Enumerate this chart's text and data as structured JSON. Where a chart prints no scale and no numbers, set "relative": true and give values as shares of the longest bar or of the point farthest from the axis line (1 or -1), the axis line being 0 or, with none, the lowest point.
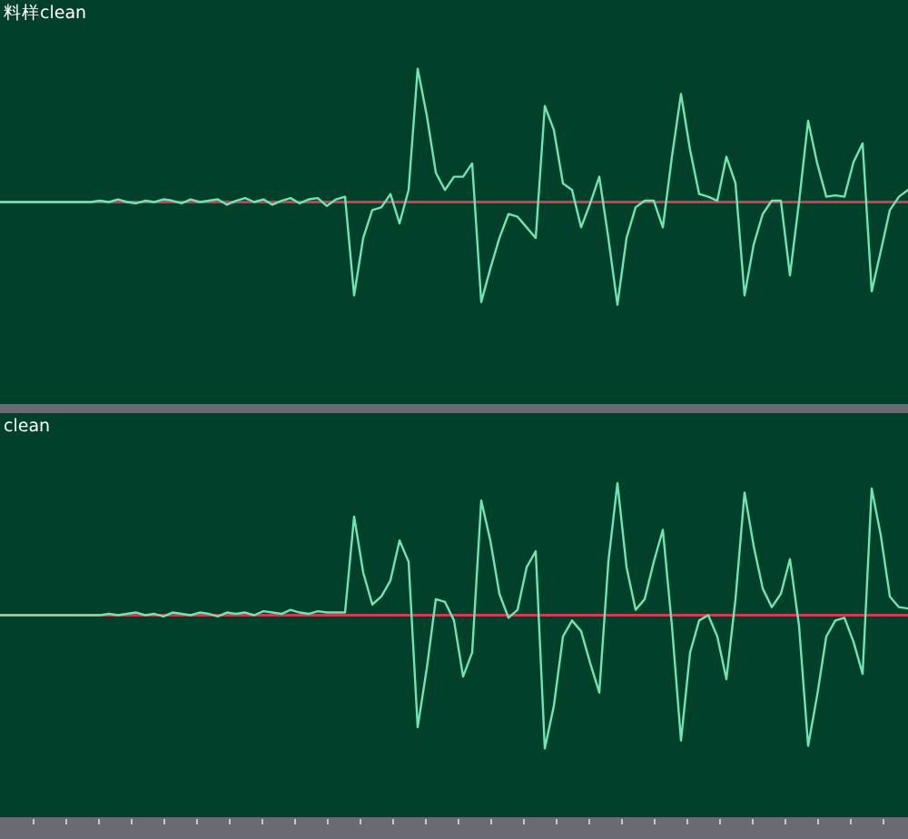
{
  "chart_data": [
    {
      "type": "line",
      "title": "料样clean",
      "relative": true,
      "categories": [
        null,
        null,
        null,
        null,
        null,
        null,
        null,
        null,
        null,
        null,
        null,
        null,
        null,
        null,
        null,
        null,
        null,
        null,
        null,
        null,
        null,
        null,
        null,
        null,
        null,
        null,
        null,
        null,
        null,
        null,
        null,
        null,
        null,
        null,
        null,
        null,
        null,
        null,
        null,
        null,
        null,
        null,
        null,
        null,
        null,
        null,
        null,
        null,
        null,
        null,
        null,
        null,
        null,
        null,
        null,
        null,
        null,
        null,
        null,
        null,
        null,
        null,
        null,
        null,
        null,
        null,
        null,
        null,
        null,
        null,
        null,
        null,
        null,
        null,
        null,
        null,
        null,
        null,
        null,
        null,
        null,
        null,
        null,
        null,
        null,
        null,
        null,
        null,
        null,
        null,
        null,
        null,
        null,
        null,
        null,
        null,
        null,
        null,
        null,
        null,
        null
      ],
      "series": [
        {
          "color": "#6ee6b4",
          "values": [
            0,
            0,
            0,
            0,
            0,
            0,
            0,
            0,
            0,
            0,
            0,
            0.01,
            0,
            0.02,
            0,
            -0.01,
            0.01,
            0,
            0.02,
            0.01,
            -0.01,
            0.02,
            0,
            0.01,
            0.02,
            -0.02,
            0.01,
            0.03,
            0,
            0.02,
            -0.02,
            0.01,
            0.03,
            -0.01,
            0.02,
            0.03,
            -0.03,
            0.02,
            0.04,
            -0.7,
            -0.27,
            -0.06,
            -0.04,
            0.06,
            -0.16,
            0.09,
            1.0,
            0.65,
            0.22,
            0.09,
            0.19,
            0.19,
            0.29,
            -0.75,
            -0.5,
            -0.27,
            -0.09,
            -0.11,
            -0.19,
            -0.27,
            0.72,
            0.54,
            0.14,
            0.09,
            -0.19,
            -0.01,
            0.19,
            -0.27,
            -0.77,
            -0.27,
            -0.04,
            0.01,
            0.01,
            -0.19,
            0.34,
            0.81,
            0.39,
            0.06,
            0.04,
            0.01,
            0.34,
            0.14,
            -0.7,
            -0.32,
            -0.09,
            0.01,
            0.01,
            -0.55,
            0,
            0.61,
            0.29,
            0.04,
            0.05,
            0.04,
            0.3,
            0.44,
            -0.67,
            -0.37,
            -0.06,
            0.04,
            0.09
          ]
        }
      ],
      "ref_lines": [
        {
          "axis": "y",
          "value": 0,
          "color": "#d23a52"
        }
      ]
    },
    {
      "type": "line",
      "title": "clean",
      "relative": true,
      "categories": [
        null,
        null,
        null,
        null,
        null,
        null,
        null,
        null,
        null,
        null,
        null,
        null,
        null,
        null,
        null,
        null,
        null,
        null,
        null,
        null,
        null,
        null,
        null,
        null,
        null,
        null,
        null,
        null,
        null,
        null,
        null,
        null,
        null,
        null,
        null,
        null,
        null,
        null,
        null,
        null,
        null,
        null,
        null,
        null,
        null,
        null,
        null,
        null,
        null,
        null,
        null,
        null,
        null,
        null,
        null,
        null,
        null,
        null,
        null,
        null,
        null,
        null,
        null,
        null,
        null,
        null,
        null,
        null,
        null,
        null,
        null,
        null,
        null,
        null,
        null,
        null,
        null,
        null,
        null,
        null,
        null,
        null,
        null,
        null,
        null,
        null,
        null,
        null,
        null,
        null,
        null,
        null,
        null,
        null,
        null,
        null,
        null,
        null,
        null,
        null,
        null
      ],
      "series": [
        {
          "color": "#6ee6b4",
          "values": [
            0,
            0,
            0,
            0,
            0,
            0,
            0,
            0,
            0,
            0,
            0,
            0,
            0.01,
            0,
            0.01,
            0.02,
            0,
            0.01,
            -0.01,
            0.02,
            0.01,
            0,
            0.02,
            0.01,
            -0.01,
            0.02,
            0.01,
            0.02,
            0,
            0.03,
            0.02,
            0.01,
            0.04,
            0.02,
            0.01,
            0.03,
            0.02,
            0.02,
            0.02,
            0.74,
            0.32,
            0.08,
            0.14,
            0.26,
            0.56,
            0.4,
            -0.84,
            -0.4,
            0.12,
            0.1,
            -0.04,
            -0.46,
            -0.28,
            0.86,
            0.56,
            0.16,
            -0.02,
            0.04,
            0.36,
            0.48,
            -1.0,
            -0.68,
            -0.16,
            -0.04,
            -0.12,
            -0.36,
            -0.58,
            0.4,
            0.99,
            0.36,
            0.04,
            0.12,
            0.4,
            0.64,
            -0.08,
            -0.94,
            -0.28,
            -0.04,
            0,
            -0.16,
            -0.48,
            0.12,
            0.92,
            0.52,
            0.2,
            0.06,
            0.16,
            0.42,
            -0.08,
            -0.98,
            -0.6,
            -0.16,
            -0.04,
            -0.02,
            -0.2,
            -0.44,
            0.95,
            0.6,
            0.14,
            0.06,
            0.05
          ]
        }
      ],
      "ref_lines": [
        {
          "axis": "y",
          "value": 0,
          "color": "#d23a52"
        }
      ]
    }
  ]
}
